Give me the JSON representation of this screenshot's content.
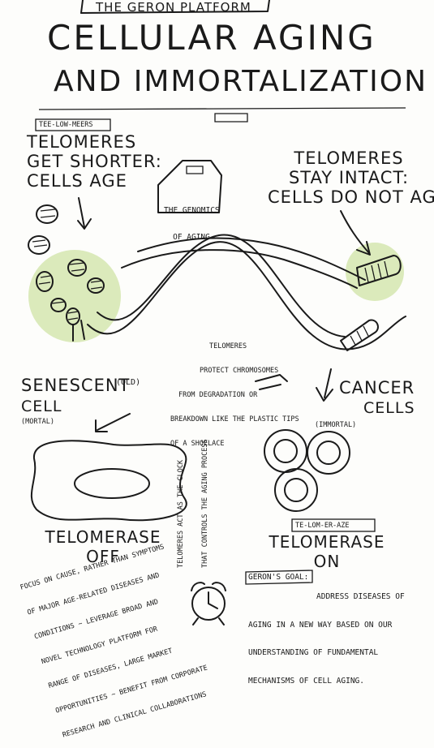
{
  "header": {
    "platform_label": "THE GERON PLATFORM",
    "title_line1": "CELLULAR AGING",
    "title_line2": "AND IMMORTALIZATION"
  },
  "pronunciation": {
    "telomeres": "TEE-LOW-MEERS",
    "telomerase": "TE-LOM-ER-AZE"
  },
  "left_heading": [
    "TELOMERES",
    "GET SHORTER:",
    "CELLS AGE"
  ],
  "right_heading": [
    "TELOMERES",
    "STAY INTACT:",
    "CELLS DO NOT AGE"
  ],
  "genomics_box": [
    "THE GENOMICS",
    "OF AGING"
  ],
  "protect_note": [
    "TELOMERES",
    "PROTECT CHROMOSOMES",
    "FROM DEGRADATION OR",
    "BREAKDOWN LIKE THE PLASTIC TIPS",
    "OF A SHOELACE"
  ],
  "senescent": {
    "label": "SENESCENT",
    "old": "(OLD)",
    "cell": "CELL",
    "mortal": "(MORTAL)"
  },
  "cancer": {
    "label": "CANCER",
    "cells": "CELLS",
    "immortal": "(IMMORTAL)"
  },
  "telomerase_off": [
    "TELOMERASE",
    "OFF"
  ],
  "telomerase_on": [
    "TELOMERASE",
    "ON"
  ],
  "clock_note": [
    "TELOMERES ACT AS THE CLOCK",
    "THAT CONTROLS THE AGING PROCESS"
  ],
  "focus_note": [
    "FOCUS ON CAUSE, RATHER THAN SYMPTOMS",
    "OF MAJOR AGE-RELATED DISEASES AND",
    "CONDITIONS ~ LEVERAGE BROAD AND",
    "NOVEL TECHNOLOGY PLATFORM FOR",
    "RANGE OF DISEASES, LARGE MARKET",
    "OPPORTUNITIES ~ BENEFIT FROM CORPORATE",
    "RESEARCH AND CLINICAL COLLABORATIONS"
  ],
  "goal": {
    "label": "GERON'S GOAL:",
    "lines": [
      "ADDRESS DISEASES OF",
      "AGING IN A NEW WAY BASED ON OUR",
      "UNDERSTANDING OF FUNDAMENTAL",
      "MECHANISMS OF CELL AGING."
    ]
  },
  "colors": {
    "highlight": "#cfe3a6",
    "ink": "#1a1a1a",
    "paper": "#fdfdfb"
  }
}
